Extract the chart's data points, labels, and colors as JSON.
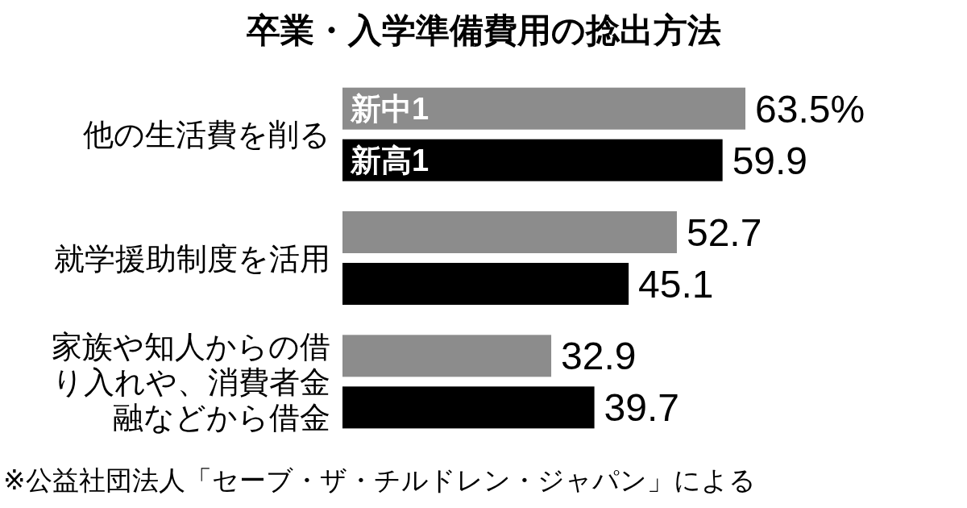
{
  "chart_data": {
    "type": "bar",
    "orientation": "horizontal",
    "title": "卒業・入学準備費用の捻出方法",
    "categories": [
      "他の生活費を削る",
      "就学援助制度を活用",
      "家族や知人からの借り入れや、消費者金融などから借金"
    ],
    "series": [
      {
        "name": "新中1",
        "color": "#8c8c8c",
        "values": [
          63.5,
          52.7,
          32.9
        ],
        "value_labels": [
          "63.5%",
          "52.7",
          "32.9"
        ]
      },
      {
        "name": "新高1",
        "color": "#000000",
        "values": [
          59.9,
          45.1,
          39.7
        ],
        "value_labels": [
          "59.9",
          "45.1",
          "39.7"
        ]
      }
    ],
    "annotations": [
      "※公益社団法人「セーブ・ザ・チルドレン・ジャパン」による"
    ]
  }
}
